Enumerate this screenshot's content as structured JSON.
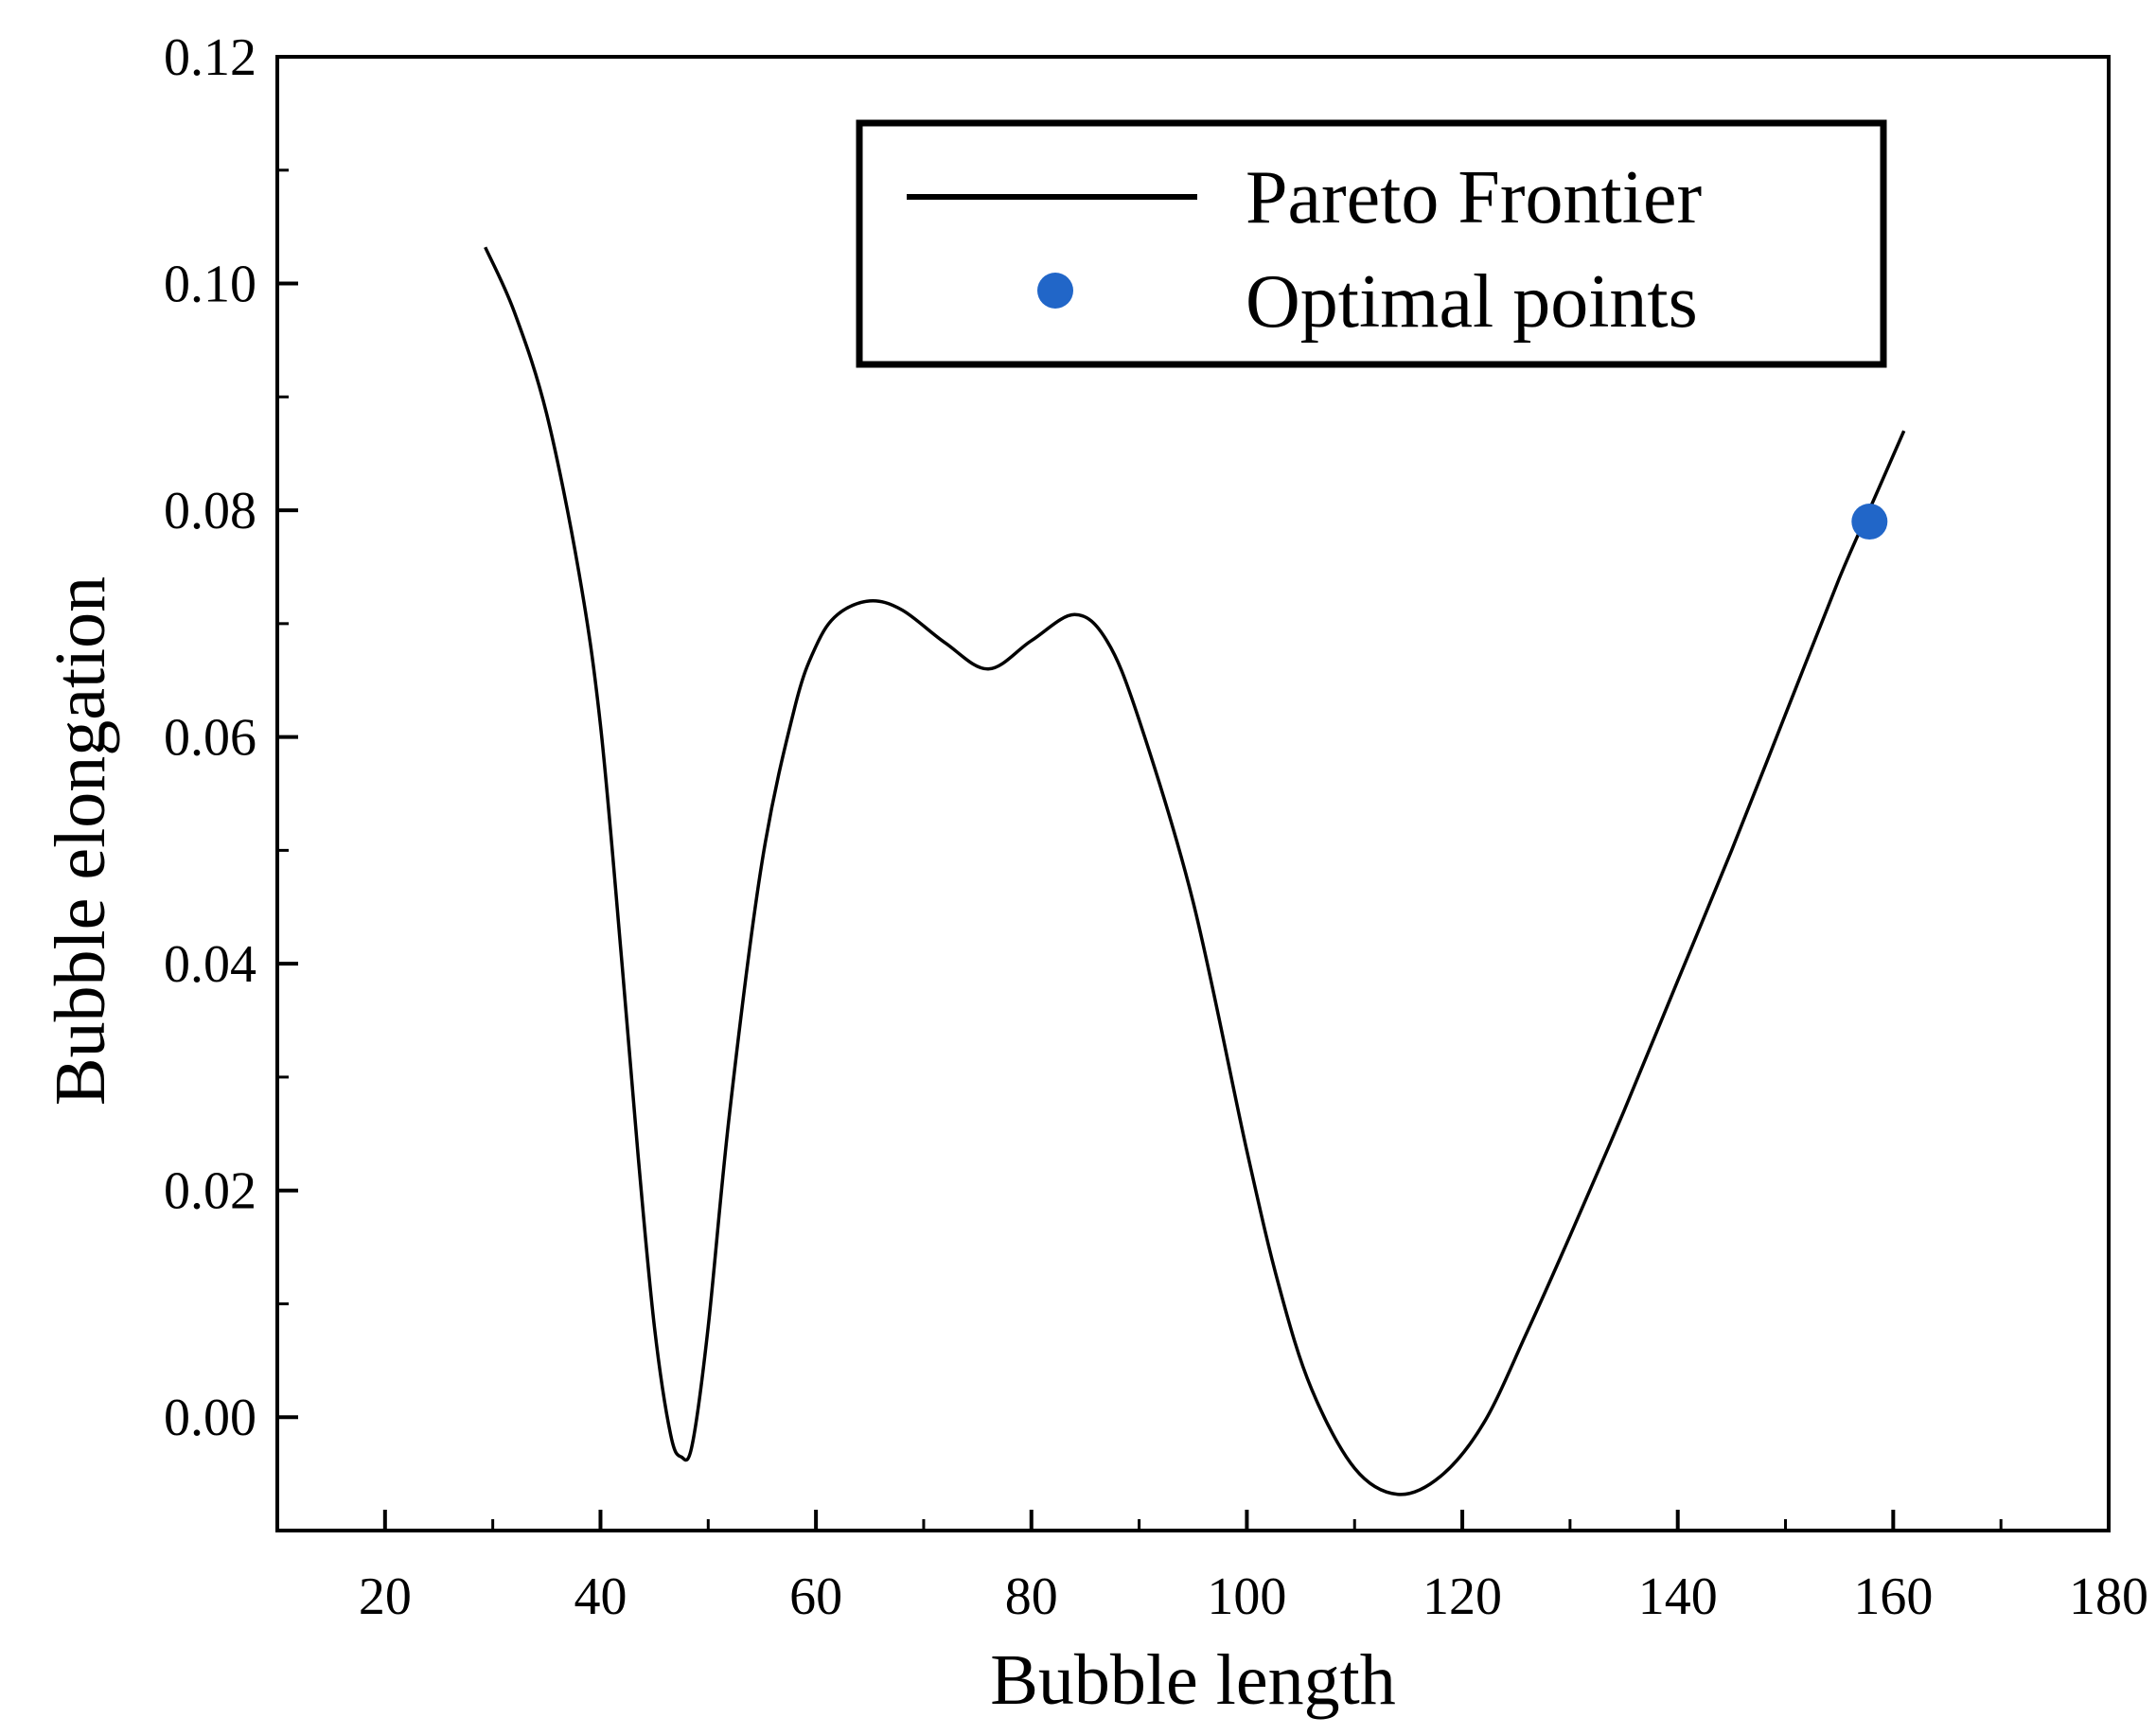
{
  "chart_data": {
    "type": "line",
    "title": "",
    "xlabel": "Bubble length",
    "ylabel": "Bubble elongation",
    "xlim": [
      10,
      180
    ],
    "ylim": [
      -0.01,
      0.12
    ],
    "grid": false,
    "legend_position": "top-right",
    "x_ticks": [
      20,
      40,
      60,
      80,
      100,
      120,
      140,
      160,
      180
    ],
    "x_tick_labels": [
      "20",
      "40",
      "60",
      "80",
      "100",
      "120",
      "140",
      "160",
      "180"
    ],
    "y_ticks": [
      0.0,
      0.02,
      0.04,
      0.06,
      0.08,
      0.1,
      0.12
    ],
    "y_tick_labels": [
      "0.00",
      "0.02",
      "0.04",
      "0.06",
      "0.08",
      "0.10",
      "0.12"
    ],
    "series": [
      {
        "name": "Pareto Frontier",
        "kind": "line",
        "color": "#000000",
        "x": [
          29.3,
          32,
          35,
          38,
          40,
          42,
          43.5,
          45,
          46.5,
          47.5,
          48.5,
          50,
          52,
          55,
          58,
          60,
          62,
          65,
          68,
          72,
          76,
          80,
          84,
          87,
          90,
          95,
          100,
          103,
          106,
          110,
          114,
          118,
          122,
          126,
          130,
          135,
          140,
          145,
          150,
          155,
          158,
          161
        ],
        "y": [
          0.1032,
          0.0975,
          0.0885,
          0.0745,
          0.061,
          0.04,
          0.023,
          0.008,
          -0.0015,
          -0.0035,
          -0.0025,
          0.008,
          0.027,
          0.049,
          0.0625,
          0.068,
          0.0708,
          0.072,
          0.0712,
          0.0683,
          0.066,
          0.0685,
          0.0708,
          0.0685,
          0.0615,
          0.0455,
          0.0235,
          0.0115,
          0.0025,
          -0.0045,
          -0.0068,
          -0.0052,
          -0.0005,
          0.0075,
          0.016,
          0.027,
          0.0385,
          0.05,
          0.062,
          0.074,
          0.0805,
          0.087
        ]
      },
      {
        "name": "Optimal points",
        "kind": "scatter",
        "color": "#2166c8",
        "x": [
          157.8
        ],
        "y": [
          0.079
        ]
      }
    ],
    "legend": [
      "Pareto Frontier",
      "Optimal points"
    ]
  }
}
